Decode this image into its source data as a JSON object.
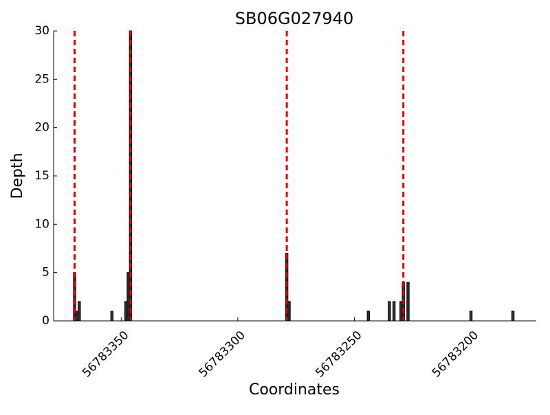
{
  "chart_data": {
    "type": "bar",
    "title": "SB06G027940",
    "x_label": "Coordinates",
    "y_label": "Depth",
    "x": [
      56783370,
      56783369,
      56783368,
      56783354,
      56783348,
      56783347,
      56783346,
      56783279,
      56783278,
      56783244,
      56783235,
      56783233,
      56783230,
      56783229,
      56783227,
      56783200,
      56783182
    ],
    "values": [
      5,
      1,
      2,
      1,
      2,
      5,
      30,
      7,
      2,
      1,
      2,
      2,
      2,
      4,
      4,
      1,
      1
    ],
    "color": "#333333",
    "vlines": [
      56783370,
      56783346,
      56783279,
      56783229
    ],
    "vline_color": "#ee0000",
    "xlim": [
      56783379,
      56783172
    ],
    "xticks": [
      56783350,
      56783300,
      56783250,
      56783200
    ],
    "ylim": [
      0,
      30
    ],
    "yticks": [
      0,
      5,
      10,
      15,
      20,
      25,
      30
    ]
  }
}
